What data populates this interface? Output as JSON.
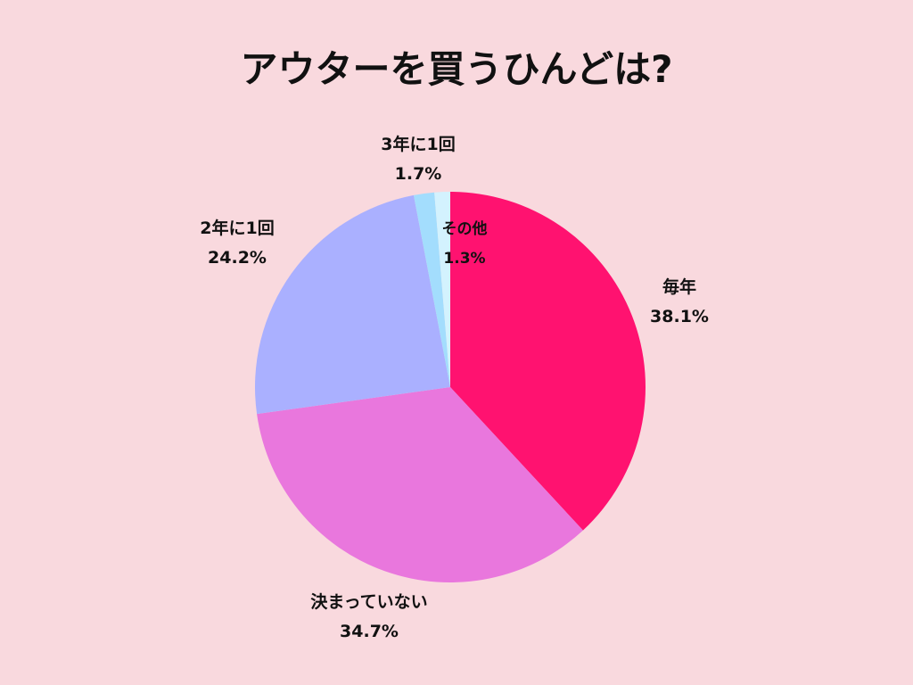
{
  "chart_data": {
    "type": "pie",
    "title": "アウターを買うひんどは?",
    "start_angle_deg": 0,
    "direction": "clockwise",
    "slices": [
      {
        "label": "毎年",
        "value": 38.1,
        "value_label": "38.1%",
        "color": "#ff1270"
      },
      {
        "label": "決まっていない",
        "value": 34.7,
        "value_label": "34.7%",
        "color": "#e977dd"
      },
      {
        "label": "2年に1回",
        "value": 24.2,
        "value_label": "24.2%",
        "color": "#aab0ff"
      },
      {
        "label": "3年に1回",
        "value": 1.7,
        "value_label": "1.7%",
        "color": "#a3ddfd"
      },
      {
        "label": "その他",
        "value": 1.3,
        "value_label": "1.3%",
        "color": "#d3f2fe"
      }
    ]
  }
}
